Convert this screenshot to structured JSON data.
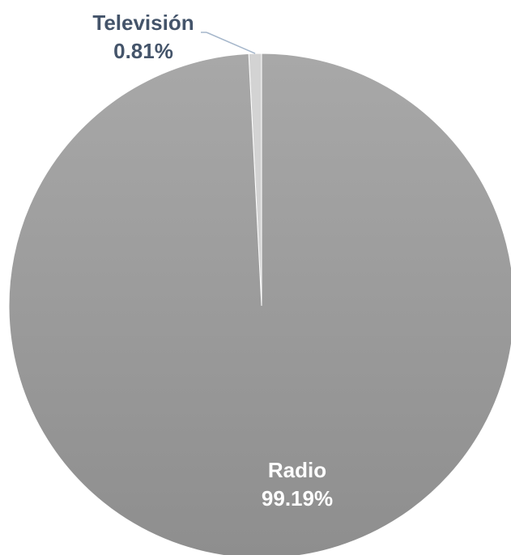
{
  "chart_data": {
    "type": "pie",
    "categories": [
      "Televisión",
      "Radio"
    ],
    "values": [
      0.81,
      99.19
    ],
    "value_labels": [
      "0.81%",
      "99.19%"
    ],
    "colors": {
      "Televisión": "#d3d3d3",
      "Radio": "#a6a6a6",
      "Radio_gradient_end": "#8e8e8e",
      "television_label_text": "#44546a",
      "radio_label_text": "#ffffff",
      "leader_line": "#a6b7cb"
    },
    "legend": "none",
    "title": ""
  }
}
